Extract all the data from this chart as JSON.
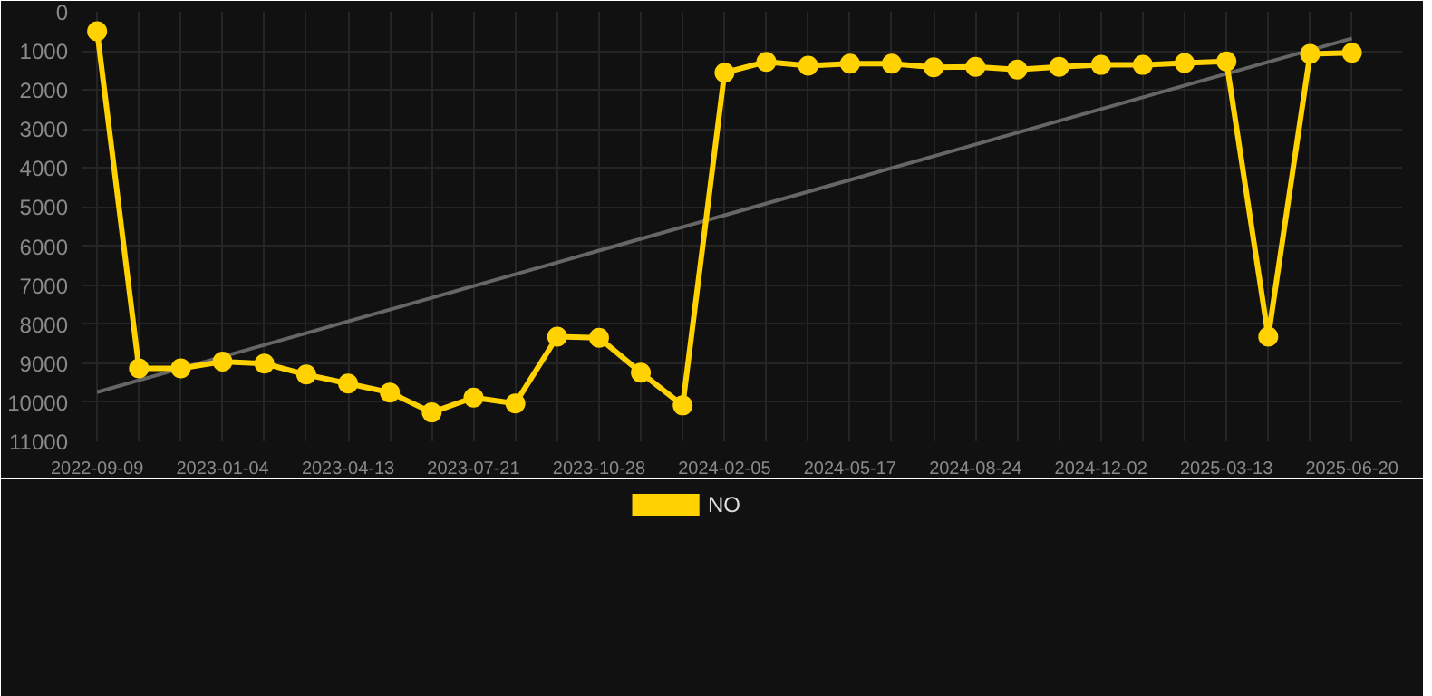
{
  "chart_data": {
    "type": "line",
    "categories": [
      "2022-09-09",
      null,
      null,
      "2023-01-04",
      null,
      null,
      "2023-04-13",
      null,
      null,
      "2023-07-21",
      null,
      null,
      "2023-10-28",
      null,
      null,
      "2024-02-05",
      null,
      null,
      "2024-05-17",
      null,
      null,
      "2024-08-24",
      null,
      null,
      "2024-12-02",
      null,
      null,
      "2025-03-13",
      null,
      null,
      "2025-06-20"
    ],
    "series": [
      {
        "name": "NO",
        "color": "#ffd200",
        "marker": "circle",
        "values": [
          500,
          9130,
          9130,
          8960,
          9010,
          9290,
          9520,
          9750,
          10260,
          9880,
          10030,
          8320,
          8350,
          9240,
          10080,
          1560,
          1280,
          1380,
          1330,
          1330,
          1420,
          1410,
          1480,
          1410,
          1360,
          1360,
          1310,
          1270,
          8320,
          1080,
          1050
        ]
      },
      {
        "type": "line",
        "color": "#666666",
        "marker": "none",
        "values": [
          9740,
          9438,
          9136,
          8834,
          8532,
          8230,
          7928,
          7626,
          7324,
          7022,
          6720,
          6418,
          6116,
          5814,
          5512,
          5210,
          4908,
          4606,
          4304,
          4002,
          3700,
          3398,
          3096,
          2794,
          2492,
          2190,
          1888,
          1586,
          1284,
          982,
          680
        ]
      }
    ],
    "ylim": [
      11000,
      0
    ],
    "yticks": [
      0,
      1000,
      2000,
      3000,
      4000,
      5000,
      6000,
      7000,
      8000,
      9000,
      10000,
      11000
    ],
    "grid": true,
    "legend": "bottom"
  }
}
